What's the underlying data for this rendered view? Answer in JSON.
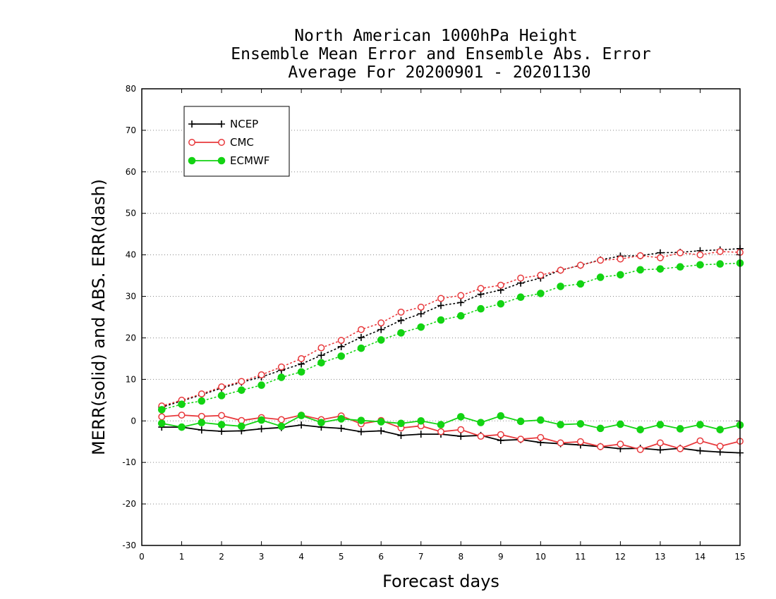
{
  "chart_data": {
    "type": "line",
    "title": [
      "North American 1000hPa Height",
      "Ensemble Mean Error and Ensemble Abs. Error",
      "Average For 20200901 - 20201130"
    ],
    "xlabel": "Forecast days",
    "ylabel": "MERR(solid) and ABS. ERR(dash)",
    "xlim": [
      0,
      15
    ],
    "ylim": [
      -30,
      80
    ],
    "xticks": [
      "0",
      "1",
      "2",
      "3",
      "4",
      "5",
      "6",
      "7",
      "8",
      "9",
      "10",
      "11",
      "12",
      "13",
      "14",
      "15"
    ],
    "yticks": [
      "-30",
      "-20",
      "-10",
      "0",
      "10",
      "20",
      "30",
      "40",
      "50",
      "60",
      "70",
      "80"
    ],
    "grid": "horizontal dotted",
    "legend_position": "top-left",
    "x": [
      0.5,
      1,
      1.5,
      2,
      2.5,
      3,
      3.5,
      4,
      4.5,
      5,
      5.5,
      6,
      6.5,
      7,
      7.5,
      8,
      8.5,
      9,
      9.5,
      10,
      10.5,
      11,
      11.5,
      12,
      12.5,
      13,
      13.5,
      14,
      14.5,
      15
    ],
    "series": [
      {
        "name": "NCEP",
        "color": "#000000",
        "marker": "plus",
        "merr": [
          -1.5,
          -1.5,
          -2.2,
          -2.5,
          -2.4,
          -1.9,
          -1.6,
          -1.0,
          -1.5,
          -1.8,
          -2.6,
          -2.4,
          -3.5,
          -3.2,
          -3.2,
          -3.7,
          -3.5,
          -4.7,
          -4.5,
          -5.2,
          -5.5,
          -5.8,
          -6.2,
          -6.7,
          -6.6,
          -7.0,
          -6.6,
          -7.2,
          -7.5,
          -7.7
        ],
        "abs_err": [
          3.3,
          4.8,
          6.3,
          7.9,
          9.3,
          10.6,
          12.2,
          13.7,
          15.8,
          17.9,
          20.1,
          22.0,
          24.2,
          25.8,
          27.8,
          28.5,
          30.5,
          31.5,
          33.2,
          34.4,
          36.3,
          37.5,
          38.8,
          39.7,
          39.8,
          40.5,
          40.6,
          41.0,
          41.2,
          41.5
        ]
      },
      {
        "name": "CMC",
        "color": "#e8393c",
        "marker": "circle-open",
        "merr": [
          1.0,
          1.4,
          1.1,
          1.3,
          0.1,
          0.8,
          0.3,
          1.4,
          0.3,
          1.2,
          -0.7,
          0.1,
          -1.7,
          -1.2,
          -2.6,
          -2.1,
          -3.7,
          -3.3,
          -4.4,
          -4.0,
          -5.3,
          -5.0,
          -6.2,
          -5.6,
          -6.9,
          -5.3,
          -6.7,
          -4.8,
          -6.1,
          -4.9
        ],
        "abs_err": [
          3.6,
          5.0,
          6.5,
          8.2,
          9.5,
          11.1,
          13.0,
          15.0,
          17.6,
          19.4,
          22.0,
          23.6,
          26.2,
          27.4,
          29.5,
          30.2,
          31.9,
          32.7,
          34.4,
          35.1,
          36.3,
          37.5,
          38.7,
          39.0,
          39.8,
          39.3,
          40.5,
          40.0,
          40.8,
          40.6
        ]
      },
      {
        "name": "ECMWF",
        "color": "#13d313",
        "marker": "circle-filled",
        "merr": [
          -0.6,
          -1.5,
          -0.4,
          -0.9,
          -1.3,
          0.2,
          -1.3,
          1.3,
          -0.4,
          0.5,
          0.1,
          -0.2,
          -0.6,
          0.0,
          -0.9,
          1.0,
          -0.4,
          1.2,
          -0.1,
          0.2,
          -0.9,
          -0.7,
          -1.8,
          -0.8,
          -2.1,
          -0.9,
          -1.9,
          -0.9,
          -2.1,
          -1.0
        ],
        "abs_err": [
          2.7,
          4.0,
          4.8,
          6.1,
          7.4,
          8.6,
          10.5,
          11.8,
          14.0,
          15.6,
          17.5,
          19.5,
          21.2,
          22.6,
          24.3,
          25.3,
          27.0,
          28.2,
          29.8,
          30.7,
          32.4,
          33.0,
          34.6,
          35.2,
          36.4,
          36.6,
          37.1,
          37.6,
          37.8,
          38.0
        ]
      }
    ]
  }
}
